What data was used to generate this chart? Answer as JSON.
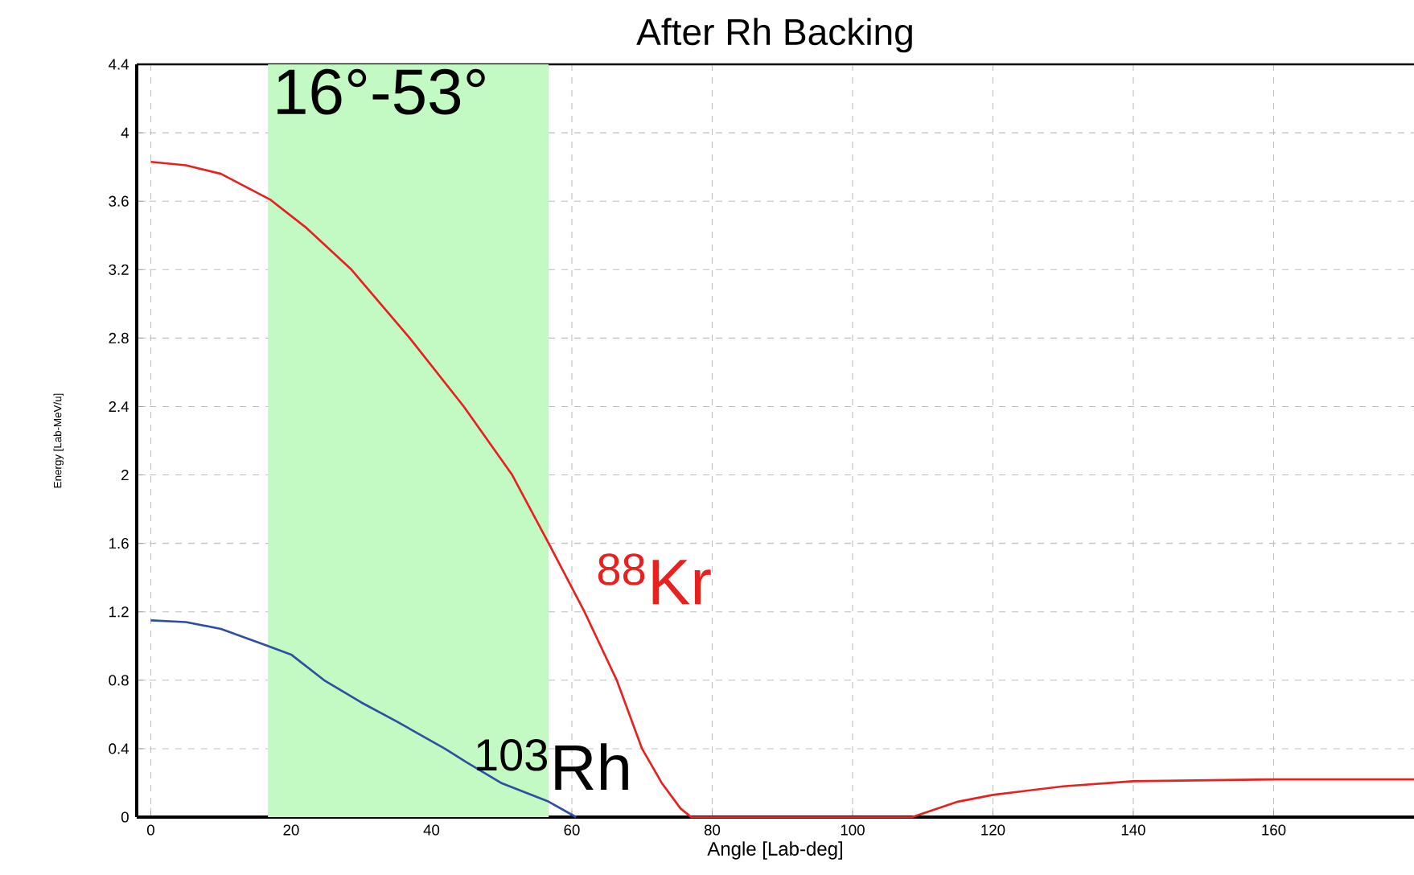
{
  "chart_data": {
    "type": "line",
    "title": "After Rh Backing",
    "xlabel": "Angle [Lab-deg]",
    "ylabel": "Energy [Lab-MeV/u]",
    "xlim": [
      -2,
      180
    ],
    "ylim": [
      0,
      4.4
    ],
    "xticks": [
      0,
      20,
      40,
      60,
      80,
      100,
      120,
      140,
      160
    ],
    "yticks": [
      0,
      0.4,
      0.8,
      1.2,
      1.6,
      2,
      2.4,
      2.8,
      3.2,
      3.6,
      4,
      4.4
    ],
    "grid": true,
    "line_style": "solid",
    "marker": "none",
    "bands": [
      {
        "axis": "x",
        "from": 16.7,
        "to": 56.7,
        "label": "16°-53°",
        "color": "#c3f9c3"
      }
    ],
    "series": [
      {
        "name": "$^{88}$Kr",
        "color": "#e8201e",
        "x": [
          0,
          5,
          10,
          17,
          22,
          28.6,
          36.9,
          44.6,
          51.5,
          56.7,
          61.8,
          66.4,
          70,
          72.8,
          75.5,
          77,
          108.5,
          115,
          120,
          130,
          140,
          160,
          180
        ],
        "values": [
          3.83,
          3.81,
          3.76,
          3.61,
          3.45,
          3.2,
          2.8,
          2.4,
          2,
          1.6,
          1.2,
          0.8,
          0.4,
          0.2,
          0.05,
          0,
          0,
          0.09,
          0.13,
          0.18,
          0.21,
          0.22,
          0.22
        ]
      },
      {
        "name": "$^{103}$Rh",
        "color": "#2f4fa0",
        "x": [
          0,
          5,
          10,
          16.7,
          20,
          24.7,
          30,
          35,
          41.9,
          45,
          49.9,
          56.7,
          60.6
        ],
        "values": [
          1.15,
          1.14,
          1.1,
          1,
          0.95,
          0.8,
          0.67,
          0.56,
          0.4,
          0.32,
          0.2,
          0.09,
          0
        ]
      }
    ]
  }
}
